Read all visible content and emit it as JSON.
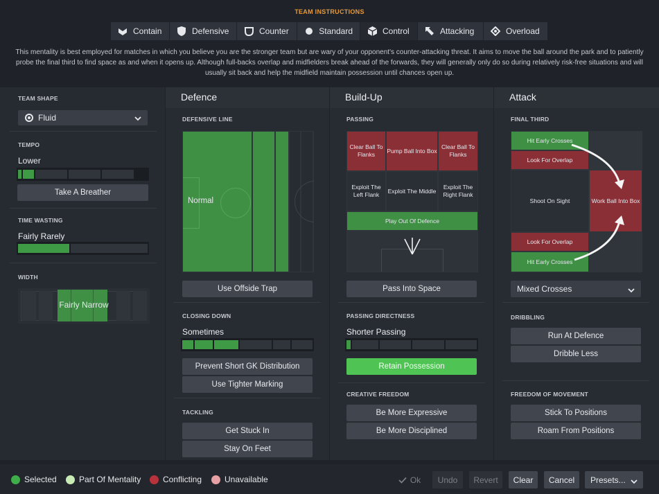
{
  "header": {
    "title": "TEAM INSTRUCTIONS"
  },
  "tabs": [
    {
      "label": "Contain",
      "icon": "contain-icon"
    },
    {
      "label": "Defensive",
      "icon": "shield-icon"
    },
    {
      "label": "Counter",
      "icon": "counter-icon"
    },
    {
      "label": "Standard",
      "icon": "standard-icon"
    },
    {
      "label": "Control",
      "icon": "cube-icon",
      "active": true
    },
    {
      "label": "Attacking",
      "icon": "arrow-icon"
    },
    {
      "label": "Overload",
      "icon": "overload-icon"
    }
  ],
  "description": "This mentality is best employed for matches in which you believe you are the stronger team but are wary of your opponent's counter-attacking threat. It aims to move the ball around the park and to patiently probe the final third to find space as and when it opens up. Although full-backs overlap and midfielders break ahead of the forwards, they will generally only do so during relatively risk-free situations and will usually sit back and help the midfield maintain possession until chances open up.",
  "left": {
    "team_shape": {
      "label": "TEAM SHAPE",
      "value": "Fluid"
    },
    "tempo": {
      "label": "TEMPO",
      "value": "Lower",
      "level": 0.2,
      "button": "Take A Breather"
    },
    "time_wasting": {
      "label": "TIME WASTING",
      "value": "Fairly Rarely",
      "level": 0.4
    },
    "width": {
      "label": "WIDTH",
      "value": "Fairly Narrow"
    }
  },
  "defence": {
    "heading": "Defence",
    "defensive_line": {
      "label": "DEFENSIVE LINE",
      "value": "Normal",
      "button": "Use Offside Trap"
    },
    "closing_down": {
      "label": "CLOSING DOWN",
      "value": "Sometimes",
      "level": 0.45,
      "buttons": [
        "Prevent Short GK Distribution",
        "Use Tighter Marking"
      ]
    },
    "tackling": {
      "label": "TACKLING",
      "buttons": [
        "Get Stuck In",
        "Stay On Feet"
      ]
    }
  },
  "buildup": {
    "heading": "Build-Up",
    "passing": {
      "label": "PASSING",
      "grid": [
        "Clear Ball To Flanks",
        "Pump Ball Into Box",
        "Clear Ball To Flanks",
        "Exploit The Left Flank",
        "Exploit The Middle",
        "Exploit The Right Flank"
      ],
      "play_out": "Play Out Of Defence",
      "button": "Pass Into Space"
    },
    "directness": {
      "label": "PASSING DIRECTNESS",
      "value": "Shorter Passing",
      "level": 0.05,
      "button": "Retain Possession"
    },
    "creative": {
      "label": "CREATIVE FREEDOM",
      "buttons": [
        "Be More Expressive",
        "Be More Disciplined"
      ]
    }
  },
  "attack": {
    "heading": "Attack",
    "final_third": {
      "label": "FINAL THIRD",
      "items": [
        "Hit Early Crosses",
        "Look For Overlap",
        "Shoot On Sight",
        "Work Ball Into Box",
        "Look For Overlap",
        "Hit Early Crosses"
      ],
      "dropdown": "Mixed Crosses"
    },
    "dribbling": {
      "label": "DRIBBLING",
      "buttons": [
        "Run At Defence",
        "Dribble Less"
      ]
    },
    "freedom": {
      "label": "FREEDOM OF MOVEMENT",
      "buttons": [
        "Stick To Positions",
        "Roam From Positions"
      ]
    }
  },
  "footer": {
    "legend": [
      {
        "label": "Selected",
        "color": "#3fae4a"
      },
      {
        "label": "Part Of Mentality",
        "color": "#c8eab5"
      },
      {
        "label": "Conflicting",
        "color": "#b8323b"
      },
      {
        "label": "Unavailable",
        "color": "#e7a1a5"
      }
    ],
    "ok": "Ok",
    "undo": "Undo",
    "revert": "Revert",
    "clear": "Clear",
    "cancel": "Cancel",
    "presets": "Presets..."
  }
}
